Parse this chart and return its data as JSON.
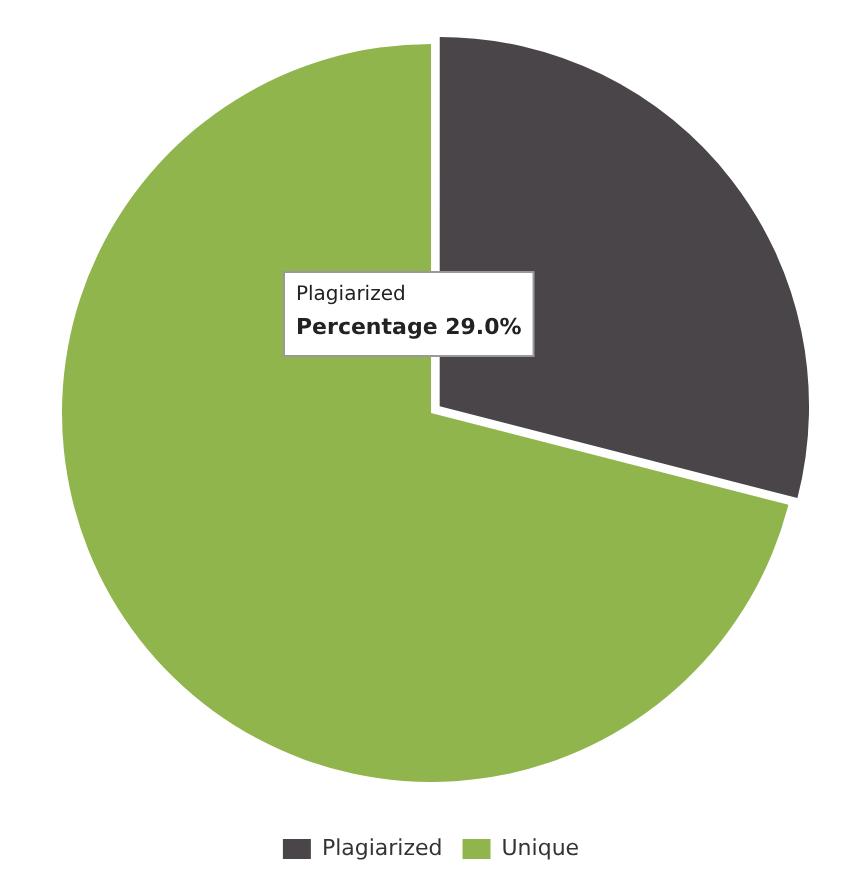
{
  "chart_data": {
    "type": "pie",
    "categories": [
      "Plagiarized",
      "Unique"
    ],
    "values": [
      29,
      71
    ],
    "colors": [
      "#4a4549",
      "#8fb54c"
    ],
    "legend": "bottom",
    "annotations": [
      "Plagiarized",
      "Percentage 29.0%"
    ]
  }
}
